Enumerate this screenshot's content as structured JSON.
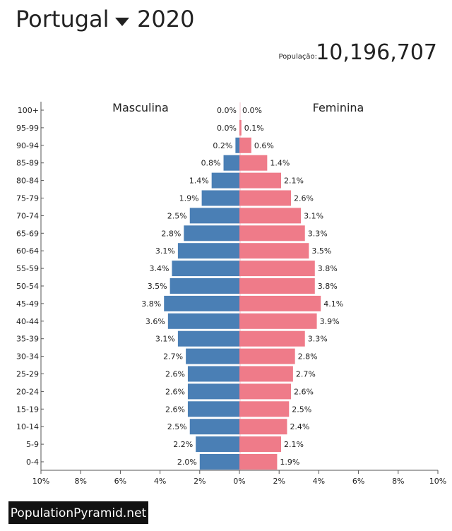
{
  "chart_data": {
    "type": "pyramid",
    "title": "Portugal",
    "year": "2020",
    "population_label": "População:",
    "population": "10,196,707",
    "footer": "PopulationPyramid.net",
    "categories": [
      "100+",
      "95-99",
      "90-94",
      "85-89",
      "80-84",
      "75-79",
      "70-74",
      "65-69",
      "60-64",
      "55-59",
      "50-54",
      "45-49",
      "40-44",
      "35-39",
      "30-34",
      "25-29",
      "20-24",
      "15-19",
      "10-14",
      "5-9",
      "0-4"
    ],
    "series": [
      {
        "name": "Masculina",
        "color": "#4a7fb5",
        "side": "left",
        "values": [
          0.0,
          0.0,
          0.2,
          0.8,
          1.4,
          1.9,
          2.5,
          2.8,
          3.1,
          3.4,
          3.5,
          3.8,
          3.6,
          3.1,
          2.7,
          2.6,
          2.6,
          2.6,
          2.5,
          2.2,
          2.0
        ],
        "value_labels": [
          "0.0%",
          "0.0%",
          "0.2%",
          "0.8%",
          "1.4%",
          "1.9%",
          "2.5%",
          "2.8%",
          "3.1%",
          "3.4%",
          "3.5%",
          "3.8%",
          "3.6%",
          "3.1%",
          "2.7%",
          "2.6%",
          "2.6%",
          "2.6%",
          "2.5%",
          "2.2%",
          "2.0%"
        ]
      },
      {
        "name": "Feminina",
        "color": "#ef7b89",
        "side": "right",
        "values": [
          0.0,
          0.1,
          0.6,
          1.4,
          2.1,
          2.6,
          3.1,
          3.3,
          3.5,
          3.8,
          3.8,
          4.1,
          3.9,
          3.3,
          2.8,
          2.7,
          2.6,
          2.5,
          2.4,
          2.1,
          1.9
        ],
        "value_labels": [
          "0.0%",
          "0.1%",
          "0.6%",
          "1.4%",
          "2.1%",
          "2.6%",
          "3.1%",
          "3.3%",
          "3.5%",
          "3.8%",
          "3.8%",
          "4.1%",
          "3.9%",
          "3.3%",
          "2.8%",
          "2.7%",
          "2.6%",
          "2.5%",
          "2.4%",
          "2.1%",
          "1.9%"
        ]
      }
    ],
    "xlim": [
      -10,
      10
    ],
    "xticks": [
      {
        "value": -10,
        "label": "10%"
      },
      {
        "value": -8,
        "label": "8%"
      },
      {
        "value": -6,
        "label": "6%"
      },
      {
        "value": -4,
        "label": "4%"
      },
      {
        "value": -2,
        "label": "2%"
      },
      {
        "value": 0,
        "label": "0%"
      },
      {
        "value": 2,
        "label": "2%"
      },
      {
        "value": 4,
        "label": "4%"
      },
      {
        "value": 6,
        "label": "6%"
      },
      {
        "value": 8,
        "label": "8%"
      },
      {
        "value": 10,
        "label": "10%"
      }
    ]
  }
}
